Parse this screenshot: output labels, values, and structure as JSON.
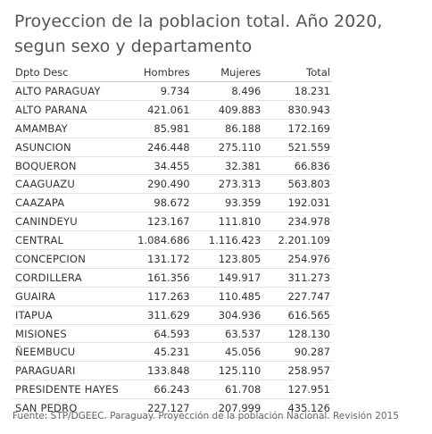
{
  "title": "Proyeccion de la poblacion total. Año 2020, segun sexo  y departamento",
  "footer": "Fuente: STP/DGEEC. Paraguay. Proyección de la población Nacional. Revisión 2015",
  "chart_data": {
    "type": "table",
    "title": "Proyeccion de la poblacion total. Año 2020, segun sexo  y departamento",
    "columns": [
      "Dpto Desc",
      "Hombres",
      "Mujeres",
      "Total"
    ],
    "rows": [
      [
        "ALTO PARAGUAY",
        "9.734",
        "8.496",
        "18.231"
      ],
      [
        "ALTO PARANA",
        "421.061",
        "409.883",
        "830.943"
      ],
      [
        "AMAMBAY",
        "85.981",
        "86.188",
        "172.169"
      ],
      [
        "ASUNCION",
        "246.448",
        "275.110",
        "521.559"
      ],
      [
        "BOQUERON",
        "34.455",
        "32.381",
        "66.836"
      ],
      [
        "CAAGUAZU",
        "290.490",
        "273.313",
        "563.803"
      ],
      [
        "CAAZAPA",
        "98.672",
        "93.359",
        "192.031"
      ],
      [
        "CANINDEYU",
        "123.167",
        "111.810",
        "234.978"
      ],
      [
        "CENTRAL",
        "1.084.686",
        "1.116.423",
        "2.201.109"
      ],
      [
        "CONCEPCION",
        "131.172",
        "123.805",
        "254.976"
      ],
      [
        "CORDILLERA",
        "161.356",
        "149.917",
        "311.273"
      ],
      [
        "GUAIRA",
        "117.263",
        "110.485",
        "227.747"
      ],
      [
        "ITAPUA",
        "311.629",
        "304.936",
        "616.565"
      ],
      [
        "MISIONES",
        "64.593",
        "63.537",
        "128.130"
      ],
      [
        "ÑEEMBUCU",
        "45.231",
        "45.056",
        "90.287"
      ],
      [
        "PARAGUARI",
        "133.848",
        "125.110",
        "258.957"
      ],
      [
        "PRESIDENTE HAYES",
        "66.243",
        "61.708",
        "127.951"
      ],
      [
        "SAN PEDRO",
        "227.127",
        "207.999",
        "435.126"
      ]
    ]
  }
}
